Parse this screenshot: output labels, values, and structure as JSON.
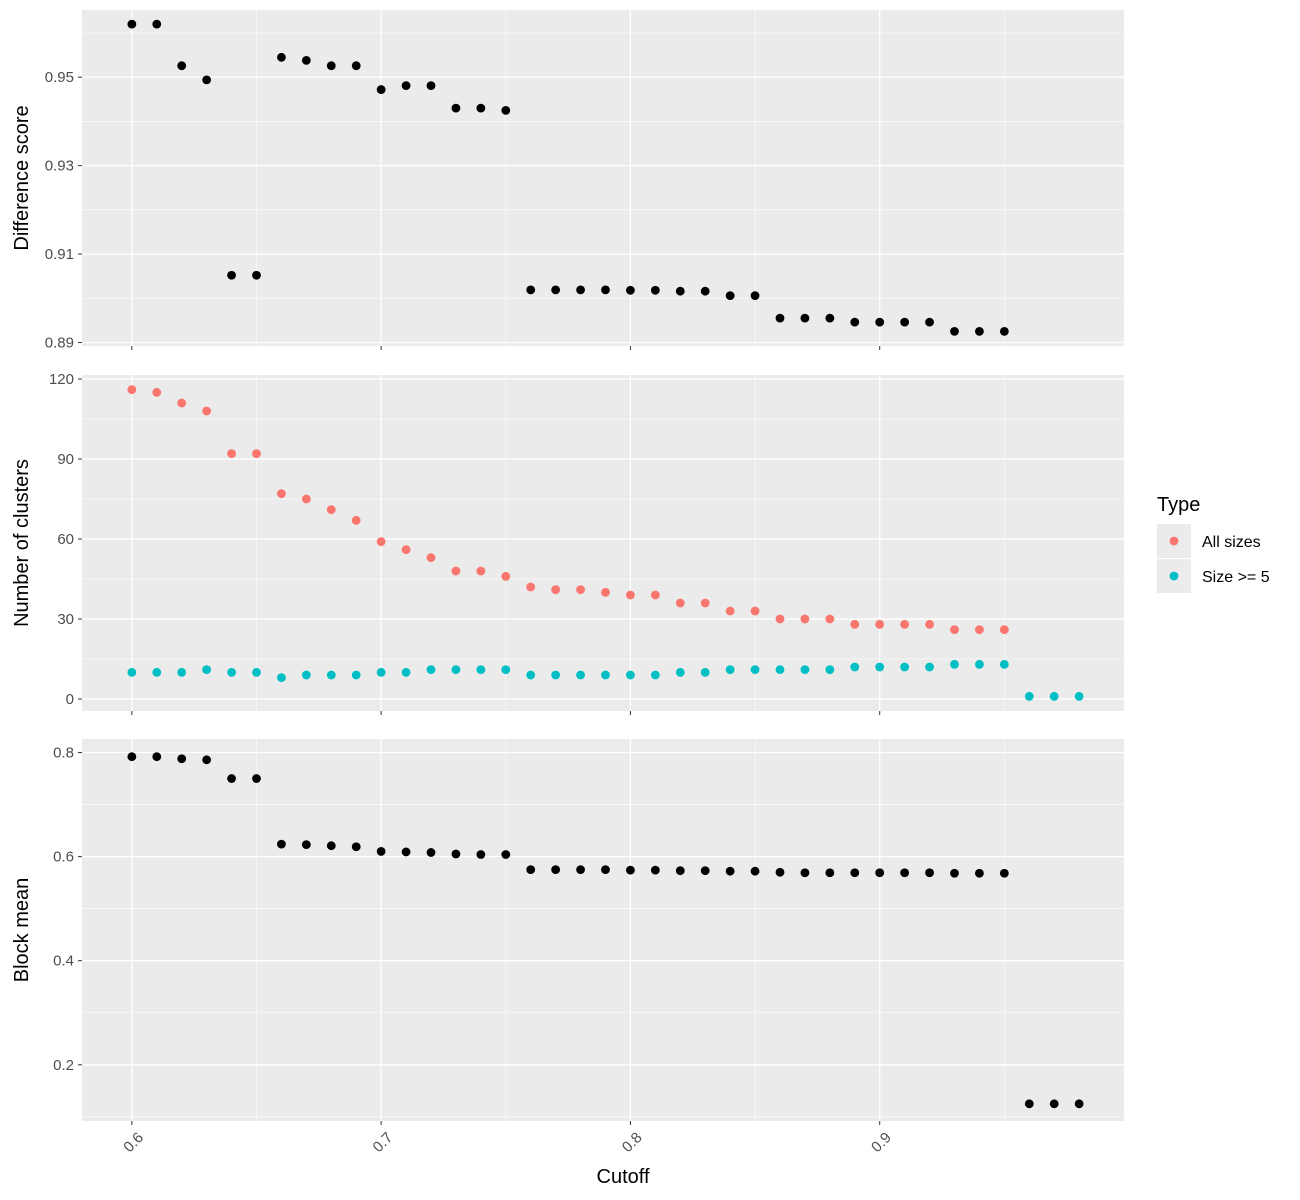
{
  "chart_data": [
    {
      "type": "scatter",
      "panel": "top",
      "ylabel": "Difference score",
      "xlim": [
        0.58,
        0.998
      ],
      "ylim": [
        0.8892,
        0.9652
      ],
      "yticks": [
        0.89,
        0.91,
        0.93,
        0.95
      ],
      "ytick_labels": [
        "0.89",
        "0.91",
        "0.93",
        "0.95"
      ],
      "series": [
        {
          "color": "#000000",
          "x": [
            0.6,
            0.61,
            0.62,
            0.63,
            0.64,
            0.65,
            0.66,
            0.67,
            0.68,
            0.69,
            0.7,
            0.71,
            0.72,
            0.73,
            0.74,
            0.75,
            0.76,
            0.77,
            0.78,
            0.79,
            0.8,
            0.81,
            0.82,
            0.83,
            0.84,
            0.85,
            0.86,
            0.87,
            0.88,
            0.89,
            0.9,
            0.91,
            0.92,
            0.93,
            0.94,
            0.95
          ],
          "y": [
            0.962,
            0.962,
            0.9526,
            0.9494,
            0.9052,
            0.9052,
            0.9545,
            0.9538,
            0.9526,
            0.9526,
            0.9472,
            0.9481,
            0.9481,
            0.943,
            0.943,
            0.9425,
            0.9019,
            0.9019,
            0.9019,
            0.9019,
            0.9018,
            0.9018,
            0.9016,
            0.9016,
            0.9006,
            0.9006,
            0.8955,
            0.8955,
            0.8955,
            0.8946,
            0.8946,
            0.8946,
            0.8946,
            0.8925,
            0.8925,
            0.8925
          ]
        }
      ]
    },
    {
      "type": "scatter",
      "panel": "middle",
      "ylabel": "Number of clusters",
      "xlim": [
        0.58,
        0.998
      ],
      "ylim": [
        -4.5,
        121.5
      ],
      "yticks": [
        0,
        30,
        60,
        90,
        120
      ],
      "ytick_labels": [
        "0",
        "30",
        "60",
        "90",
        "120"
      ],
      "legend": {
        "title": "Type",
        "position": "right"
      },
      "series": [
        {
          "name": "All sizes",
          "color": "#F8766D",
          "x": [
            0.6,
            0.61,
            0.62,
            0.63,
            0.64,
            0.65,
            0.66,
            0.67,
            0.68,
            0.69,
            0.7,
            0.71,
            0.72,
            0.73,
            0.74,
            0.75,
            0.76,
            0.77,
            0.78,
            0.79,
            0.8,
            0.81,
            0.82,
            0.83,
            0.84,
            0.85,
            0.86,
            0.87,
            0.88,
            0.89,
            0.9,
            0.91,
            0.92,
            0.93,
            0.94,
            0.95
          ],
          "y": [
            116,
            115,
            111,
            108,
            92,
            92,
            77,
            75,
            71,
            67,
            59,
            56,
            53,
            48,
            48,
            46,
            42,
            41,
            41,
            40,
            39,
            39,
            36,
            36,
            33,
            33,
            30,
            30,
            30,
            28,
            28,
            28,
            28,
            26,
            26,
            26
          ]
        },
        {
          "name": "Size >= 5",
          "color": "#00BFC4",
          "x": [
            0.6,
            0.61,
            0.62,
            0.63,
            0.64,
            0.65,
            0.66,
            0.67,
            0.68,
            0.69,
            0.7,
            0.71,
            0.72,
            0.73,
            0.74,
            0.75,
            0.76,
            0.77,
            0.78,
            0.79,
            0.8,
            0.81,
            0.82,
            0.83,
            0.84,
            0.85,
            0.86,
            0.87,
            0.88,
            0.89,
            0.9,
            0.91,
            0.92,
            0.93,
            0.94,
            0.95,
            0.96,
            0.97,
            0.98
          ],
          "y": [
            10,
            10,
            10,
            11,
            10,
            10,
            8,
            9,
            9,
            9,
            10,
            10,
            11,
            11,
            11,
            11,
            9,
            9,
            9,
            9,
            9,
            9,
            10,
            10,
            11,
            11,
            11,
            11,
            11,
            12,
            12,
            12,
            12,
            13,
            13,
            13,
            1,
            1,
            1
          ]
        }
      ]
    },
    {
      "type": "scatter",
      "panel": "bottom",
      "ylabel": "Block mean",
      "xlabel": "Cutoff",
      "xlim": [
        0.58,
        0.998
      ],
      "ylim": [
        0.092,
        0.826
      ],
      "yticks": [
        0.2,
        0.4,
        0.6,
        0.8
      ],
      "ytick_labels": [
        "0.2",
        "0.4",
        "0.6",
        "0.8"
      ],
      "xticks": [
        0.6,
        0.7,
        0.8,
        0.9
      ],
      "xtick_labels": [
        "0.6",
        "0.7",
        "0.8",
        "0.9"
      ],
      "series": [
        {
          "color": "#000000",
          "x": [
            0.6,
            0.61,
            0.62,
            0.63,
            0.64,
            0.65,
            0.66,
            0.67,
            0.68,
            0.69,
            0.7,
            0.71,
            0.72,
            0.73,
            0.74,
            0.75,
            0.76,
            0.77,
            0.78,
            0.79,
            0.8,
            0.81,
            0.82,
            0.83,
            0.84,
            0.85,
            0.86,
            0.87,
            0.88,
            0.89,
            0.9,
            0.91,
            0.92,
            0.93,
            0.94,
            0.95,
            0.96,
            0.97,
            0.98
          ],
          "y": [
            0.792,
            0.792,
            0.788,
            0.786,
            0.75,
            0.75,
            0.624,
            0.623,
            0.621,
            0.619,
            0.61,
            0.609,
            0.608,
            0.605,
            0.604,
            0.604,
            0.575,
            0.575,
            0.575,
            0.575,
            0.574,
            0.574,
            0.573,
            0.573,
            0.572,
            0.572,
            0.57,
            0.569,
            0.569,
            0.569,
            0.569,
            0.569,
            0.569,
            0.568,
            0.568,
            0.568,
            0.125,
            0.125,
            0.125
          ]
        }
      ]
    }
  ]
}
